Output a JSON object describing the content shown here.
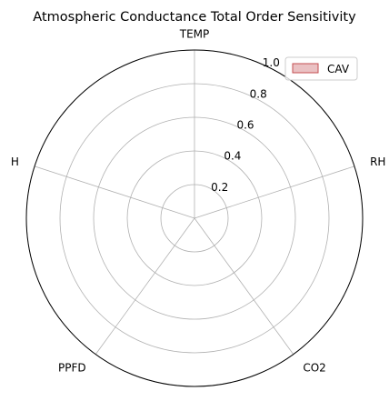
{
  "chart_data": {
    "type": "radar",
    "title": "Atmospheric Conductance Total Order Sensitivity",
    "axes": [
      "TEMP",
      "RH",
      "CO2",
      "PPFD",
      "H"
    ],
    "rlim": [
      0,
      1.0
    ],
    "radial_ticks": [
      0.2,
      0.4,
      0.6,
      0.8,
      1.0
    ],
    "radial_tick_labels": [
      "0.2",
      "0.4",
      "0.6",
      "0.8",
      "1.0"
    ],
    "series": [
      {
        "name": "CAV",
        "values": [
          0,
          0,
          0,
          0,
          0
        ],
        "color": "#c44e52"
      }
    ],
    "legend": {
      "position": "top-right"
    },
    "grid": true
  },
  "colors": {
    "grid": "#b0b0b0",
    "frame": "#000000",
    "series_fill": "#c44e52"
  }
}
